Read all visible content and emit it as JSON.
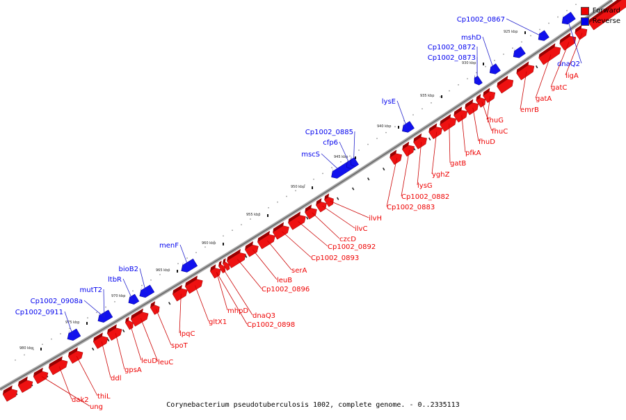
{
  "caption": "Corynebacterium pseudotuberculosis 1002, complete genome. - 0..2335113",
  "legend": [
    {
      "label": "Forward",
      "color": "#ee0000"
    },
    {
      "label": "Reverse",
      "color": "#0000ee"
    }
  ],
  "colors": {
    "forward": "#ee0000",
    "reverse": "#0000ee",
    "backbone": "#888888",
    "label_line_forward": "#cc0000",
    "label_line_reverse": "#2222cc"
  },
  "ticks": [
    "925 kbp",
    "930 kbp",
    "935 kbp",
    "940 kbp",
    "945 kbp",
    "950 kbp",
    "955 kbp",
    "960 kbp",
    "965 kbp",
    "970 kbp",
    "975 kbp",
    "980 kbp"
  ],
  "genes_reverse": [
    "Cp1002_0867",
    "dnaQ2",
    "mshD",
    "Cp1002_0872",
    "Cp1002_0873",
    "lysE",
    "Cp1002_0885",
    "cfp6",
    "mscS",
    "menF",
    "bioB2",
    "ltbR",
    "mutT2",
    "Cp1002_0908a",
    "Cp1002_0911"
  ],
  "genes_forward": [
    "ligA",
    "gatC",
    "gatA",
    "emrB",
    "fhuG",
    "fhuC",
    "fhuD",
    "pfkA",
    "gatB",
    "yghZ",
    "lysG",
    "Cp1002_0882",
    "Cp1002_0883",
    "ilvH",
    "ilvC",
    "czcD",
    "Cp1002_0892",
    "Cp1002_0893",
    "serA",
    "leuB",
    "Cp1002_0896",
    "dnaQ3",
    "mhpD",
    "Cp1002_0898",
    "gltX1",
    "lpqC",
    "spoT",
    "leuC",
    "leuD",
    "gpsA",
    "ddl",
    "thiL",
    "dak2",
    "ung"
  ]
}
